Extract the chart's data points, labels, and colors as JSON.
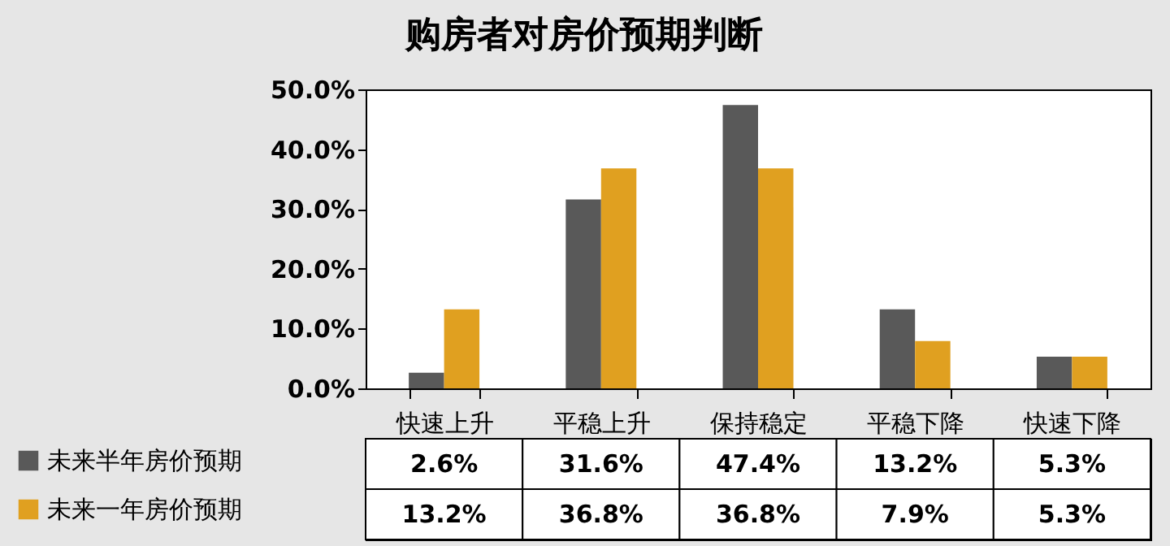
{
  "chart_data": {
    "type": "bar",
    "title": "购房者对房价预期判断",
    "categories": [
      "快速上升",
      "平稳上升",
      "保持稳定",
      "平稳下降",
      "快速下降"
    ],
    "series": [
      {
        "name": "未来半年房价预期",
        "color": "#595959",
        "values": [
          2.6,
          31.6,
          47.4,
          13.2,
          5.3
        ],
        "value_labels": [
          "2.6%",
          "31.6%",
          "47.4%",
          "13.2%",
          "5.3%"
        ]
      },
      {
        "name": "未来一年房价预期",
        "color": "#e0a020",
        "values": [
          13.2,
          36.8,
          36.8,
          7.9,
          5.3
        ],
        "value_labels": [
          "13.2%",
          "36.8%",
          "36.8%",
          "7.9%",
          "5.3%"
        ]
      }
    ],
    "ylim": [
      0,
      50
    ],
    "yticks": [
      {
        "value": 0,
        "label": "0.0%"
      },
      {
        "value": 10,
        "label": "10.0%"
      },
      {
        "value": 20,
        "label": "20.0%"
      },
      {
        "value": 30,
        "label": "30.0%"
      },
      {
        "value": 40,
        "label": "40.0%"
      },
      {
        "value": 50,
        "label": "50.0%"
      }
    ],
    "grid": false,
    "legend": "bottom left"
  }
}
